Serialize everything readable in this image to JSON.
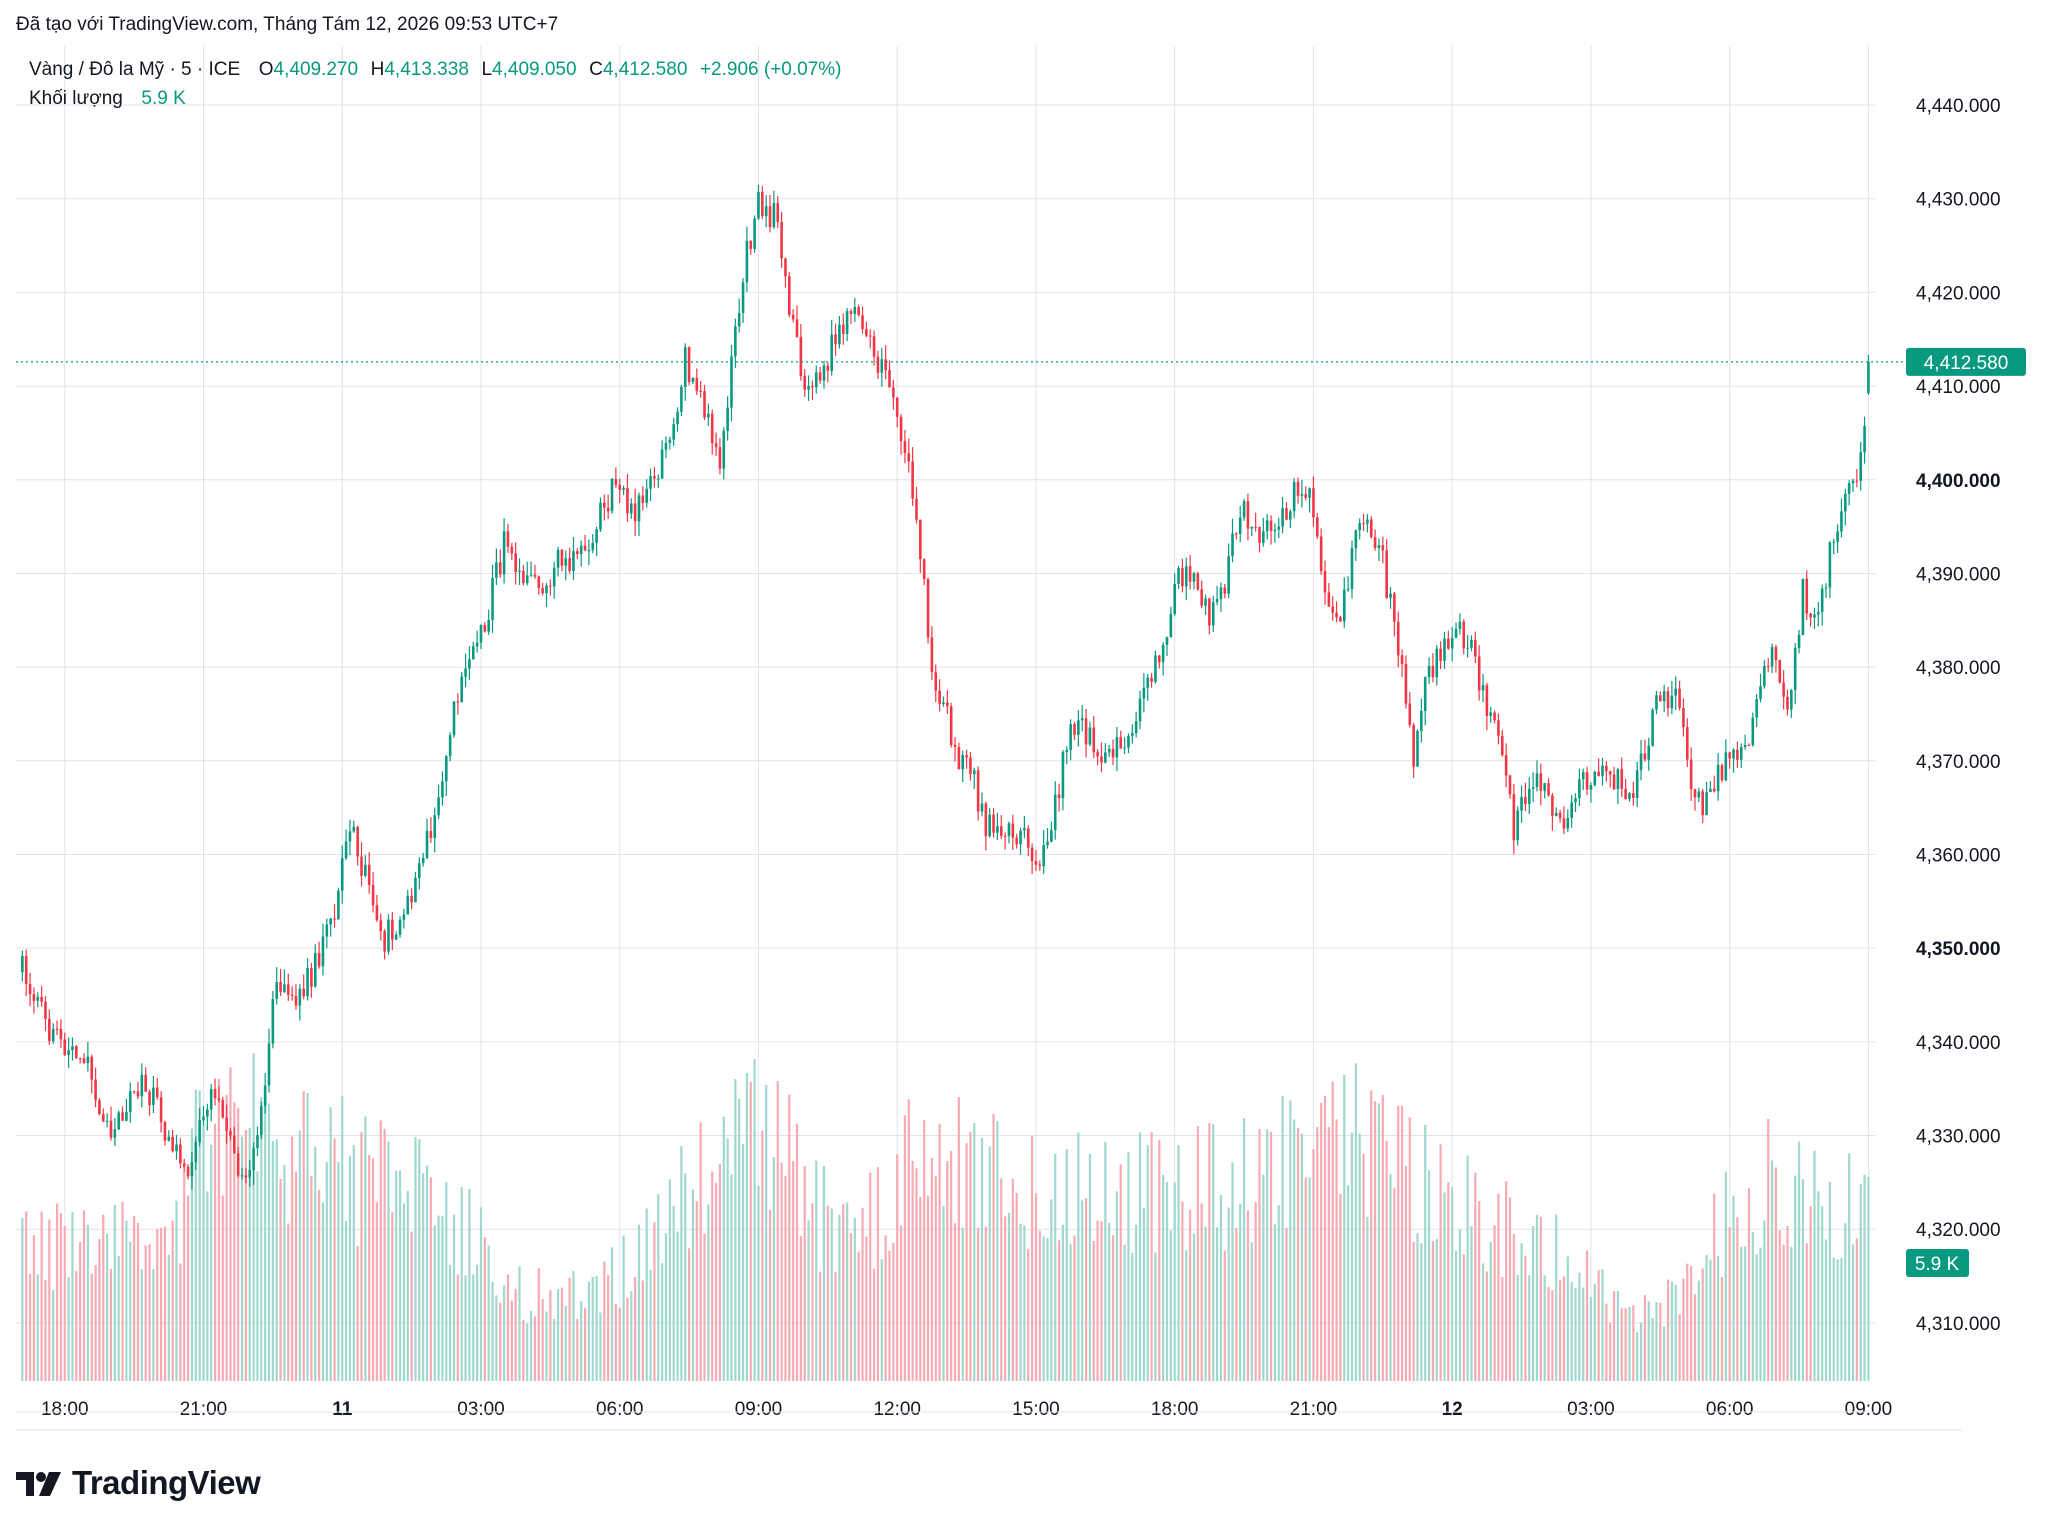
{
  "header": {
    "created_by": "Đã tạo với TradingView.com, Tháng Tám 12, 2026 09:53 UTC+7",
    "symbol": "Vàng / Đô la Mỹ · 5 · ICE",
    "open_key": "O",
    "open": "4,409.270",
    "high_key": "H",
    "high": "4,413.338",
    "low_key": "L",
    "low": "4,409.050",
    "close_key": "C",
    "close": "4,412.580",
    "change": "+2.906 (+0.07%)",
    "volume_label": "Khối lượng",
    "volume_value": "5.9 K"
  },
  "brand": {
    "name": "TradingView"
  },
  "colors": {
    "up": "#089981",
    "down": "#f23645",
    "up_vol": "#9fd8ce",
    "down_vol": "#f7aab1",
    "grid": "#e0e3eb"
  },
  "chart_data": {
    "type": "candlestick",
    "title": "Vàng / Đô la Mỹ · 5 · ICE",
    "interval": "5",
    "y_ticks": [
      "4,310.000",
      "4,320.000",
      "4,330.000",
      "4,340.000",
      "4,350.000",
      "4,360.000",
      "4,370.000",
      "4,380.000",
      "4,390.000",
      "4,400.000",
      "4,410.000",
      "4,420.000",
      "4,430.000",
      "4,440.000"
    ],
    "y_ticks_values": [
      4310,
      4320,
      4330,
      4340,
      4350,
      4360,
      4370,
      4380,
      4390,
      4400,
      4410,
      4420,
      4430,
      4440
    ],
    "bold_ticks": [
      4350,
      4400
    ],
    "ylim": [
      4303.8,
      4446.3
    ],
    "x_ticks": [
      {
        "label": "18:00",
        "bar": 12,
        "bold": false
      },
      {
        "label": "21:00",
        "bar": 48,
        "bold": false
      },
      {
        "label": "11",
        "bar": 84,
        "bold": true
      },
      {
        "label": "03:00",
        "bar": 120,
        "bold": false
      },
      {
        "label": "06:00",
        "bar": 156,
        "bold": false
      },
      {
        "label": "09:00",
        "bar": 192,
        "bold": false
      },
      {
        "label": "12:00",
        "bar": 228,
        "bold": false
      },
      {
        "label": "15:00",
        "bar": 264,
        "bold": false
      },
      {
        "label": "18:00",
        "bar": 300,
        "bold": false
      },
      {
        "label": "21:00",
        "bar": 336,
        "bold": false
      },
      {
        "label": "12",
        "bar": 372,
        "bold": true
      },
      {
        "label": "03:00",
        "bar": 408,
        "bold": false
      },
      {
        "label": "06:00",
        "bar": 444,
        "bold": false
      },
      {
        "label": "09:00",
        "bar": 480,
        "bold": false
      }
    ],
    "bar_count": 480,
    "anchors": [
      [
        0,
        4349
      ],
      [
        3,
        4346
      ],
      [
        8,
        4341
      ],
      [
        13,
        4340
      ],
      [
        18,
        4338
      ],
      [
        23,
        4330
      ],
      [
        26,
        4331
      ],
      [
        30,
        4336
      ],
      [
        35,
        4334
      ],
      [
        40,
        4329
      ],
      [
        44,
        4327
      ],
      [
        50,
        4334
      ],
      [
        54,
        4331
      ],
      [
        59,
        4324
      ],
      [
        63,
        4333
      ],
      [
        67,
        4347
      ],
      [
        72,
        4344
      ],
      [
        77,
        4348
      ],
      [
        82,
        4354
      ],
      [
        86,
        4363
      ],
      [
        90,
        4358
      ],
      [
        95,
        4351
      ],
      [
        100,
        4354
      ],
      [
        104,
        4359
      ],
      [
        108,
        4364
      ],
      [
        113,
        4375
      ],
      [
        117,
        4381
      ],
      [
        121,
        4385
      ],
      [
        126,
        4393
      ],
      [
        131,
        4388
      ],
      [
        136,
        4389
      ],
      [
        140,
        4391
      ],
      [
        145,
        4392
      ],
      [
        150,
        4395
      ],
      [
        155,
        4400
      ],
      [
        160,
        4396
      ],
      [
        164,
        4399
      ],
      [
        169,
        4404
      ],
      [
        173,
        4413
      ],
      [
        178,
        4408
      ],
      [
        182,
        4401
      ],
      [
        186,
        4416
      ],
      [
        189,
        4424
      ],
      [
        192,
        4430
      ],
      [
        196,
        4428
      ],
      [
        198,
        4424
      ],
      [
        201,
        4416
      ],
      [
        205,
        4409
      ],
      [
        209,
        4412
      ],
      [
        213,
        4416
      ],
      [
        217,
        4418
      ],
      [
        221,
        4414
      ],
      [
        225,
        4411
      ],
      [
        229,
        4404
      ],
      [
        233,
        4397
      ],
      [
        237,
        4380
      ],
      [
        240,
        4376
      ],
      [
        244,
        4370
      ],
      [
        247,
        4369
      ],
      [
        251,
        4363
      ],
      [
        255,
        4362
      ],
      [
        258,
        4362
      ],
      [
        262,
        4361
      ],
      [
        265,
        4358
      ],
      [
        268,
        4363
      ],
      [
        272,
        4372
      ],
      [
        276,
        4374
      ],
      [
        280,
        4371
      ],
      [
        285,
        4371
      ],
      [
        289,
        4373
      ],
      [
        294,
        4379
      ],
      [
        298,
        4383
      ],
      [
        301,
        4390
      ],
      [
        305,
        4389
      ],
      [
        309,
        4386
      ],
      [
        313,
        4389
      ],
      [
        317,
        4397
      ],
      [
        321,
        4395
      ],
      [
        325,
        4394
      ],
      [
        330,
        4398
      ],
      [
        335,
        4399
      ],
      [
        339,
        4388
      ],
      [
        343,
        4386
      ],
      [
        347,
        4393
      ],
      [
        350,
        4396
      ],
      [
        354,
        4391
      ],
      [
        358,
        4382
      ],
      [
        362,
        4369
      ],
      [
        365,
        4380
      ],
      [
        369,
        4381
      ],
      [
        373,
        4384
      ],
      [
        377,
        4382
      ],
      [
        381,
        4376
      ],
      [
        385,
        4370
      ],
      [
        388,
        4363
      ],
      [
        392,
        4367
      ],
      [
        396,
        4368
      ],
      [
        400,
        4363
      ],
      [
        404,
        4367
      ],
      [
        408,
        4368
      ],
      [
        413,
        4369
      ],
      [
        418,
        4366
      ],
      [
        422,
        4371
      ],
      [
        426,
        4377
      ],
      [
        430,
        4377
      ],
      [
        434,
        4368
      ],
      [
        437,
        4365
      ],
      [
        441,
        4368
      ],
      [
        444,
        4370
      ],
      [
        448,
        4371
      ],
      [
        452,
        4379
      ],
      [
        455,
        4382
      ],
      [
        459,
        4376
      ],
      [
        463,
        4388
      ],
      [
        467,
        4385
      ],
      [
        471,
        4394
      ],
      [
        474,
        4399
      ],
      [
        478,
        4402
      ],
      [
        480,
        4412.6
      ]
    ],
    "last": {
      "open": 4409.27,
      "high": 4413.338,
      "low": 4409.05,
      "close": 4412.58
    },
    "price_label": "4,412.580",
    "volume": {
      "last_label": "5.9 K",
      "profile": [
        [
          0,
          0.38
        ],
        [
          40,
          0.4
        ],
        [
          45,
          0.68
        ],
        [
          60,
          0.72
        ],
        [
          84,
          0.62
        ],
        [
          110,
          0.5
        ],
        [
          130,
          0.25
        ],
        [
          150,
          0.24
        ],
        [
          165,
          0.42
        ],
        [
          180,
          0.62
        ],
        [
          195,
          0.72
        ],
        [
          210,
          0.45
        ],
        [
          225,
          0.48
        ],
        [
          232,
          0.75
        ],
        [
          245,
          0.6
        ],
        [
          270,
          0.55
        ],
        [
          300,
          0.55
        ],
        [
          325,
          0.6
        ],
        [
          345,
          0.74
        ],
        [
          365,
          0.55
        ],
        [
          390,
          0.42
        ],
        [
          410,
          0.35
        ],
        [
          412,
          0.2
        ],
        [
          425,
          0.18
        ],
        [
          440,
          0.42
        ],
        [
          455,
          0.58
        ],
        [
          470,
          0.55
        ],
        [
          480,
          0.45
        ]
      ]
    }
  }
}
